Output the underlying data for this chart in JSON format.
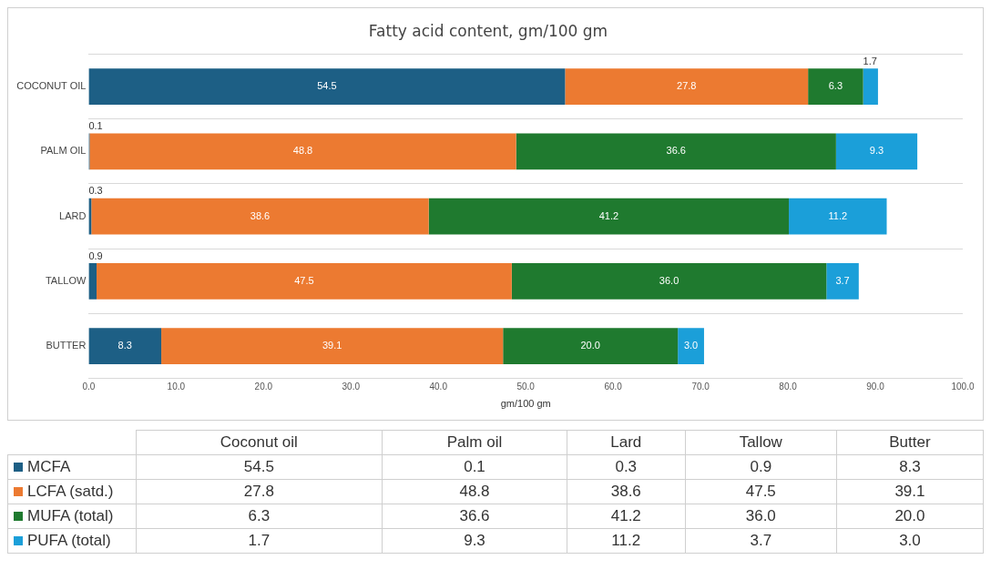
{
  "chart_data": {
    "type": "bar",
    "orientation": "horizontal",
    "stacked": true,
    "title": "Fatty acid content, gm/100 gm",
    "xlabel": "gm/100 gm",
    "categories": [
      "COCONUT OIL",
      "PALM OIL",
      "LARD",
      "TALLOW",
      "BUTTER"
    ],
    "annotations": [
      "Coconut oil",
      "Palm oil",
      "Lard",
      "Tallow",
      "Butter"
    ],
    "xlim": [
      0,
      100
    ],
    "xticks": [
      {
        "value": 0,
        "label": "0.0"
      },
      {
        "value": 10,
        "label": "10.0"
      },
      {
        "value": 20,
        "label": "20.0"
      },
      {
        "value": 30,
        "label": "30.0"
      },
      {
        "value": 40,
        "label": "40.0"
      },
      {
        "value": 50,
        "label": "50.0"
      },
      {
        "value": 60,
        "label": "60.0"
      },
      {
        "value": 70,
        "label": "70.0"
      },
      {
        "value": 80,
        "label": "80.0"
      },
      {
        "value": 90,
        "label": "90.0"
      },
      {
        "value": 100,
        "label": "100.0"
      }
    ],
    "grid": "y",
    "legend": "bottom",
    "series": [
      {
        "name": "MCFA",
        "color": "#1d5f85",
        "values": [
          54.5,
          0.1,
          0.3,
          0.9,
          8.3
        ],
        "value_labels": [
          "54.5",
          "0.1",
          "0.3",
          "0.9",
          "8.3"
        ]
      },
      {
        "name": "LCFA (satd.)",
        "color": "#ec7a31",
        "values": [
          27.8,
          48.8,
          38.6,
          47.5,
          39.1
        ],
        "value_labels": [
          "27.8",
          "48.8",
          "38.6",
          "47.5",
          "39.1"
        ]
      },
      {
        "name": "MUFA (total)",
        "color": "#1f7a2f",
        "values": [
          6.3,
          36.6,
          41.2,
          36.0,
          20.0
        ],
        "value_labels": [
          "6.3",
          "36.6",
          "41.2",
          "36.0",
          "20.0"
        ]
      },
      {
        "name": "PUFA (total)",
        "color": "#1b9fd9",
        "values": [
          1.7,
          9.3,
          11.2,
          3.7,
          3.0
        ],
        "value_labels": [
          "1.7",
          "9.3",
          "11.2",
          "3.7",
          "3.0"
        ]
      }
    ]
  }
}
